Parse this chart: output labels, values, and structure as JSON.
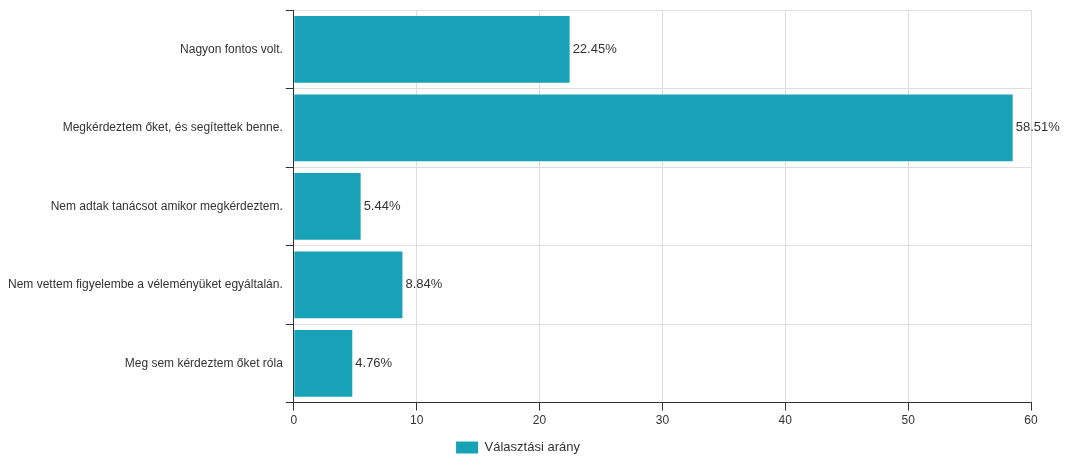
{
  "chart_data": {
    "type": "bar",
    "orientation": "horizontal",
    "categories": [
      "Nagyon fontos volt.",
      "Megkérdeztem őket, és segítettek benne.",
      "Nem adtak tanácsot amikor megkérdeztem.",
      "Nem vettem figyelembe a véleményüket egyáltalán.",
      "Meg sem kérdeztem őket róla"
    ],
    "series": [
      {
        "name": "Választási arány",
        "color": "#17a2b8",
        "values": [
          22.45,
          58.51,
          5.44,
          8.84,
          4.76
        ],
        "value_labels": [
          "22.45%",
          "58.51%",
          "5.44%",
          "8.84%",
          "4.76%"
        ]
      }
    ],
    "xlim": [
      0,
      60
    ],
    "xticks": [
      0,
      10,
      20,
      30,
      40,
      50,
      60
    ],
    "grid": true,
    "legend": "bottom"
  }
}
